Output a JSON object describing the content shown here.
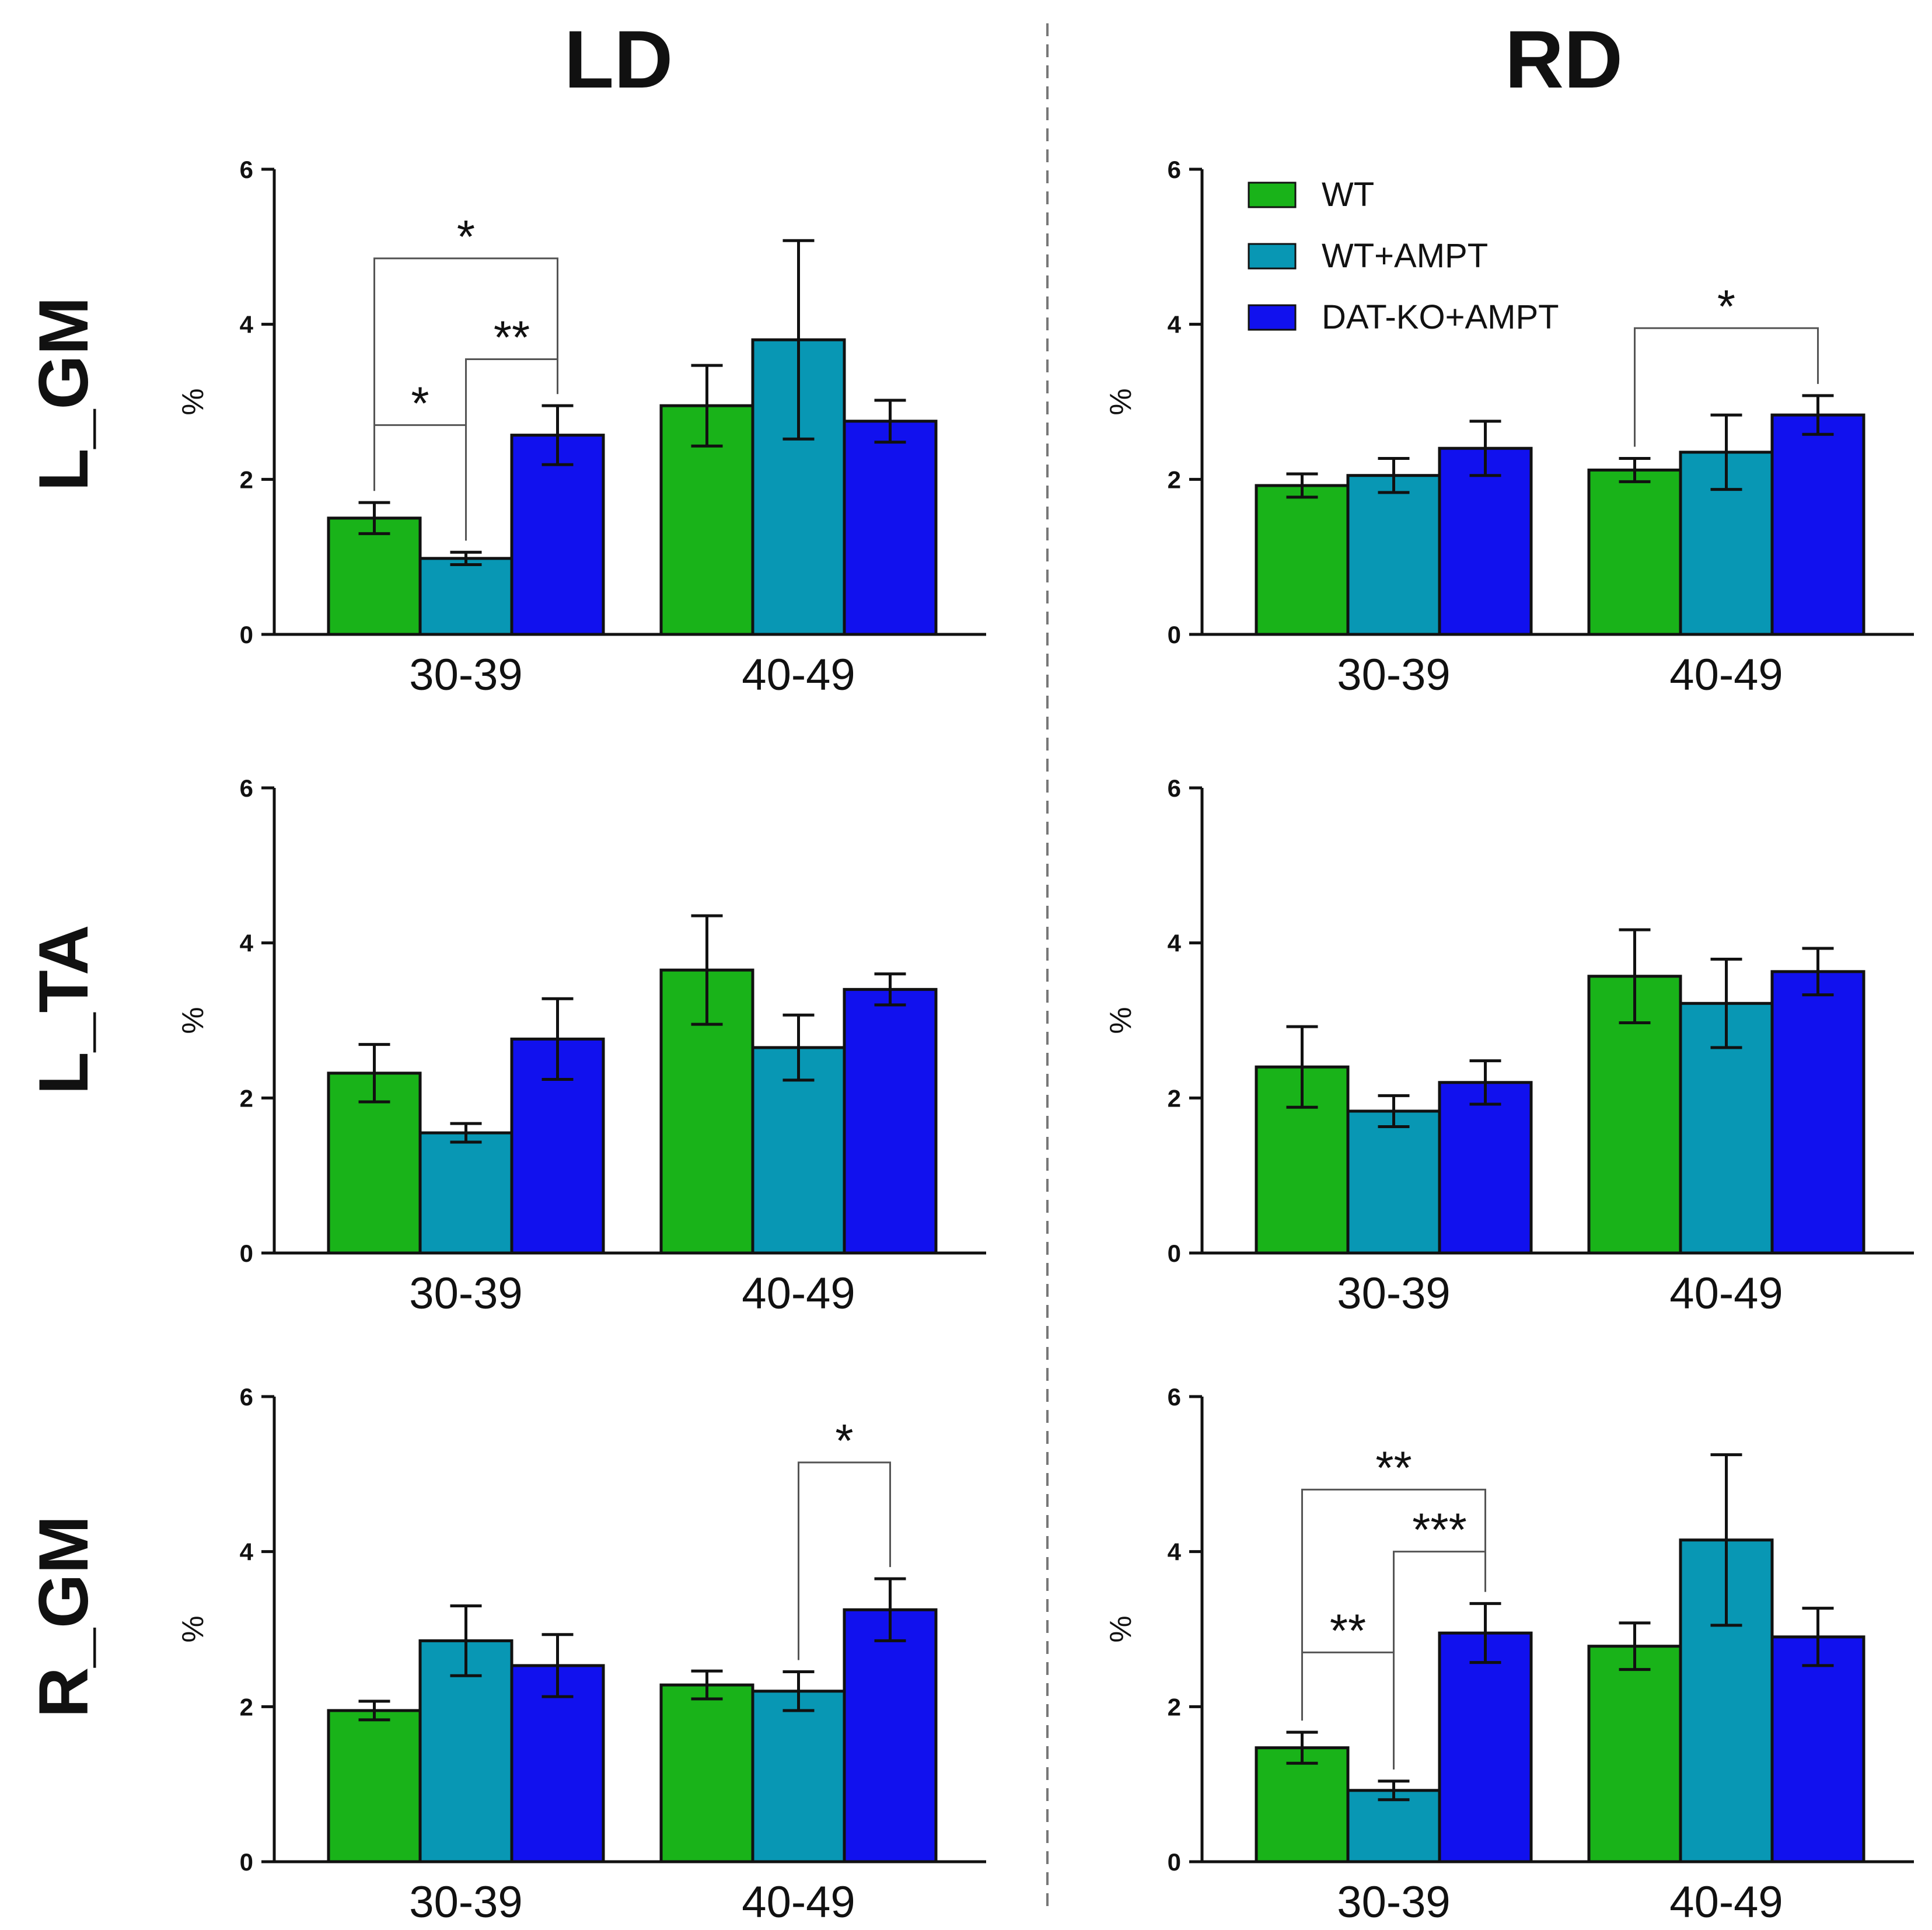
{
  "figure": {
    "columns": [
      "LD",
      "RD"
    ],
    "rows": [
      "L_GM",
      "L_TA",
      "R_GM"
    ]
  },
  "colors": {
    "WT": "#19b319",
    "WT+AMPT": "#0897b4",
    "DAT-KO+AMPT": "#1111ee",
    "axis": "#111111"
  },
  "legend": {
    "entries": [
      "WT",
      "WT+AMPT",
      "DAT-KO+AMPT"
    ]
  },
  "chart_data": [
    {
      "type": "bar",
      "column": "LD",
      "row": "L_GM",
      "categories": [
        "30-39",
        "40-49"
      ],
      "ylabel": "%",
      "ylim": [
        0,
        6
      ],
      "yticks": [
        0,
        2,
        4,
        6
      ],
      "series": [
        {
          "name": "WT",
          "values": [
            1.5,
            2.95
          ],
          "errors": [
            0.2,
            0.52
          ]
        },
        {
          "name": "WT+AMPT",
          "values": [
            0.98,
            3.8
          ],
          "errors": [
            0.08,
            1.28
          ]
        },
        {
          "name": "DAT-KO+AMPT",
          "values": [
            2.57,
            2.75
          ],
          "errors": [
            0.38,
            0.27
          ]
        }
      ],
      "significance": [
        {
          "cat": 0,
          "from": 0,
          "to": 1,
          "label": "*",
          "level": 2.7
        },
        {
          "cat": 0,
          "from": 1,
          "to": 2,
          "label": "**",
          "level": 3.55
        },
        {
          "cat": 0,
          "from": 0,
          "to": 2,
          "label": "*",
          "level": 4.85
        }
      ]
    },
    {
      "type": "bar",
      "column": "RD",
      "row": "L_GM",
      "categories": [
        "30-39",
        "40-49"
      ],
      "ylabel": "%",
      "ylim": [
        0,
        6
      ],
      "yticks": [
        0,
        2,
        4,
        6
      ],
      "series": [
        {
          "name": "WT",
          "values": [
            1.92,
            2.12
          ],
          "errors": [
            0.15,
            0.15
          ]
        },
        {
          "name": "WT+AMPT",
          "values": [
            2.05,
            2.35
          ],
          "errors": [
            0.22,
            0.48
          ]
        },
        {
          "name": "DAT-KO+AMPT",
          "values": [
            2.4,
            2.83
          ],
          "errors": [
            0.35,
            0.25
          ]
        }
      ],
      "significance": [
        {
          "cat": 1,
          "from": 0,
          "to": 2,
          "label": "*",
          "level": 3.95
        }
      ]
    },
    {
      "type": "bar",
      "column": "LD",
      "row": "L_TA",
      "categories": [
        "30-39",
        "40-49"
      ],
      "ylabel": "%",
      "ylim": [
        0,
        6
      ],
      "yticks": [
        0,
        2,
        4,
        6
      ],
      "series": [
        {
          "name": "WT",
          "values": [
            2.32,
            3.65
          ],
          "errors": [
            0.37,
            0.7
          ]
        },
        {
          "name": "WT+AMPT",
          "values": [
            1.55,
            2.65
          ],
          "errors": [
            0.12,
            0.42
          ]
        },
        {
          "name": "DAT-KO+AMPT",
          "values": [
            2.76,
            3.4
          ],
          "errors": [
            0.52,
            0.2
          ]
        }
      ],
      "significance": []
    },
    {
      "type": "bar",
      "column": "RD",
      "row": "L_TA",
      "categories": [
        "30-39",
        "40-49"
      ],
      "ylabel": "%",
      "ylim": [
        0,
        6
      ],
      "yticks": [
        0,
        2,
        4,
        6
      ],
      "series": [
        {
          "name": "WT",
          "values": [
            2.4,
            3.57
          ],
          "errors": [
            0.52,
            0.6
          ]
        },
        {
          "name": "WT+AMPT",
          "values": [
            1.83,
            3.22
          ],
          "errors": [
            0.2,
            0.57
          ]
        },
        {
          "name": "DAT-KO+AMPT",
          "values": [
            2.2,
            3.63
          ],
          "errors": [
            0.28,
            0.3
          ]
        }
      ],
      "significance": []
    },
    {
      "type": "bar",
      "column": "LD",
      "row": "R_GM",
      "categories": [
        "30-39",
        "40-49"
      ],
      "ylabel": "%",
      "ylim": [
        0,
        6
      ],
      "yticks": [
        0,
        2,
        4,
        6
      ],
      "series": [
        {
          "name": "WT",
          "values": [
            1.95,
            2.28
          ],
          "errors": [
            0.12,
            0.18
          ]
        },
        {
          "name": "WT+AMPT",
          "values": [
            2.85,
            2.2
          ],
          "errors": [
            0.45,
            0.25
          ]
        },
        {
          "name": "DAT-KO+AMPT",
          "values": [
            2.53,
            3.25
          ],
          "errors": [
            0.4,
            0.4
          ]
        }
      ],
      "significance": [
        {
          "cat": 1,
          "from": 1,
          "to": 2,
          "label": "*",
          "level": 5.15
        }
      ]
    },
    {
      "type": "bar",
      "column": "RD",
      "row": "R_GM",
      "categories": [
        "30-39",
        "40-49"
      ],
      "ylabel": "%",
      "ylim": [
        0,
        6
      ],
      "yticks": [
        0,
        2,
        4,
        6
      ],
      "series": [
        {
          "name": "WT",
          "values": [
            1.47,
            2.78
          ],
          "errors": [
            0.2,
            0.3
          ]
        },
        {
          "name": "WT+AMPT",
          "values": [
            0.92,
            4.15
          ],
          "errors": [
            0.12,
            1.1
          ]
        },
        {
          "name": "DAT-KO+AMPT",
          "values": [
            2.95,
            2.9
          ],
          "errors": [
            0.38,
            0.37
          ]
        }
      ],
      "significance": [
        {
          "cat": 0,
          "from": 0,
          "to": 1,
          "label": "**",
          "level": 2.7
        },
        {
          "cat": 0,
          "from": 1,
          "to": 2,
          "label": "***",
          "level": 4.0
        },
        {
          "cat": 0,
          "from": 0,
          "to": 2,
          "label": "**",
          "level": 4.8
        }
      ]
    }
  ]
}
